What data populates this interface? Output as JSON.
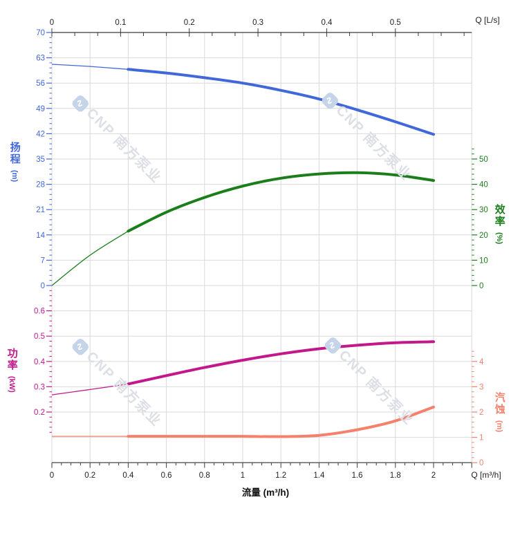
{
  "chart_data": {
    "type": "line",
    "description": "Pump performance curves: head, efficiency, power and NPSH versus flow",
    "x": [
      0,
      0.2,
      0.4,
      0.6,
      0.8,
      1.0,
      1.2,
      1.4,
      1.6,
      1.8,
      2.0
    ],
    "x_axis_bottom": {
      "label": "流量 (m³/h)",
      "end_label": "Q [m³/h]",
      "ticks": [
        0,
        0.2,
        0.4,
        0.6,
        0.8,
        1,
        1.2,
        1.4,
        1.6,
        1.8,
        2
      ],
      "range": [
        0,
        2.2
      ]
    },
    "x_axis_top": {
      "end_label": "Q [L/s]",
      "ticks": [
        0,
        0.1,
        0.2,
        0.3,
        0.4,
        0.5
      ],
      "range": [
        0,
        0.61
      ]
    },
    "grid": true,
    "series": [
      {
        "id": "head",
        "name": "扬程",
        "unit": "(m)",
        "color": "#4168d9",
        "axis_side": "left",
        "axis_ticks": [
          0,
          7,
          14,
          21,
          28,
          35,
          42,
          49,
          56,
          63,
          70
        ],
        "axis_range": [
          0,
          70
        ],
        "values": [
          61.2,
          60.6,
          59.8,
          58.8,
          57.5,
          56.0,
          54.0,
          51.6,
          48.6,
          45.3,
          41.8
        ],
        "bold_range": [
          0.4,
          2.0
        ]
      },
      {
        "id": "efficiency",
        "name": "效率",
        "unit": "(%)",
        "color": "#1b7e1b",
        "axis_side": "right",
        "axis_ticks": [
          0,
          10,
          20,
          30,
          40,
          50
        ],
        "axis_range": [
          0,
          50
        ],
        "values": [
          0,
          12,
          21.5,
          29,
          34.8,
          39.3,
          42.4,
          44.1,
          44.6,
          43.7,
          41.5
        ],
        "bold_range": [
          0.4,
          2.0
        ]
      },
      {
        "id": "power",
        "name": "功率",
        "unit": "(kW)",
        "color": "#c2188c",
        "axis_side": "left",
        "axis_ticks": [
          0.2,
          0.3,
          0.4,
          0.5,
          0.6
        ],
        "axis_range": [
          0.2,
          0.6
        ],
        "values": [
          0.268,
          0.289,
          0.311,
          0.344,
          0.376,
          0.405,
          0.43,
          0.45,
          0.464,
          0.474,
          0.478
        ],
        "bold_range": [
          0.4,
          2.0
        ]
      },
      {
        "id": "npsh",
        "name": "汽蚀",
        "unit": "(m)",
        "color": "#f5806b",
        "axis_side": "right",
        "axis_ticks": [
          0,
          1,
          2,
          3,
          4
        ],
        "axis_range": [
          0,
          4
        ],
        "values": [
          1.04,
          1.04,
          1.04,
          1.04,
          1.04,
          1.04,
          1.03,
          1.08,
          1.3,
          1.65,
          2.2
        ],
        "bold_range": [
          0.4,
          2.0
        ]
      }
    ],
    "watermark": {
      "text": "CNP 南方泵业"
    }
  },
  "colors": {
    "background": "#ffffff",
    "grid": "#d9d9d9",
    "axis_line": "#3a3a3a",
    "tick_text": "#222222",
    "watermark_text": "#dcdfe5",
    "watermark_logo_bg": "#c6d4ea"
  }
}
